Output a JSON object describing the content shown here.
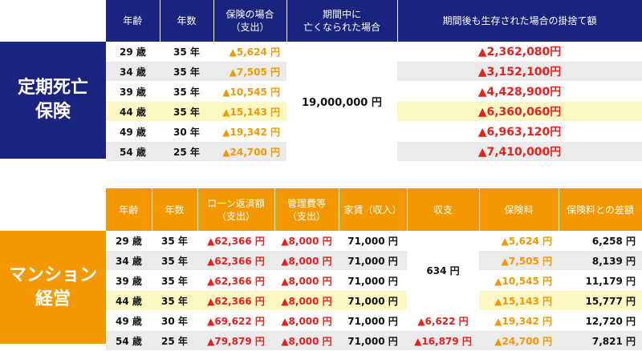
{
  "colors": {
    "navy": "#1a237e",
    "orange": "#f39800",
    "red": "#e8201d",
    "highlight": "#fdf7c4",
    "gray_row": "#ebebeb"
  },
  "term": {
    "label_line1": "定期死亡",
    "label_line2": "保険",
    "headers": {
      "age": "年齢",
      "years": "年数",
      "premium": "保険の場合\n（支出）",
      "death_payout": "期間中に\n亡くなられた場合",
      "survival": "期間後も生存された場合の掛捨て額"
    },
    "death_payout_value": "19,000,000 円",
    "rows": [
      {
        "age": "29 歳",
        "years": "35 年",
        "premium": "5,624 円",
        "survival": "2,362,080円"
      },
      {
        "age": "34 歳",
        "years": "35 年",
        "premium": "7,505 円",
        "survival": "3,152,100円"
      },
      {
        "age": "39 歳",
        "years": "35 年",
        "premium": "10,545 円",
        "survival": "4,428,900円"
      },
      {
        "age": "44 歳",
        "years": "35 年",
        "premium": "15,143 円",
        "survival": "6,360,060円"
      },
      {
        "age": "49 歳",
        "years": "30 年",
        "premium": "19,342 円",
        "survival": "6,963,120円"
      },
      {
        "age": "54 歳",
        "years": "25 年",
        "premium": "24,700 円",
        "survival": "7,410,000円"
      }
    ]
  },
  "mansion": {
    "label_line1": "マンション",
    "label_line2": "経営",
    "headers": {
      "age": "年齢",
      "years": "年数",
      "loan": "ローン返済額\n（支出）",
      "mgmt": "管理費等\n（支出）",
      "rent": "家賃（収入）",
      "balance": "収支",
      "premium": "保険料",
      "diff": "保険料との差額"
    },
    "shared_balance": "634 円",
    "rows": [
      {
        "age": "29 歳",
        "years": "35 年",
        "loan": "62,366 円",
        "mgmt": "8,000 円",
        "rent": "71,000 円",
        "balance": "",
        "premium": "5,624 円",
        "diff": "6,258 円"
      },
      {
        "age": "34 歳",
        "years": "35 年",
        "loan": "62,366 円",
        "mgmt": "8,000 円",
        "rent": "71,000 円",
        "balance": "",
        "premium": "7,505 円",
        "diff": "8,139 円"
      },
      {
        "age": "39 歳",
        "years": "35 年",
        "loan": "62,366 円",
        "mgmt": "8,000 円",
        "rent": "71,000 円",
        "balance": "",
        "premium": "10,545 円",
        "diff": "11,179 円"
      },
      {
        "age": "44 歳",
        "years": "35 年",
        "loan": "62,366 円",
        "mgmt": "8,000 円",
        "rent": "71,000 円",
        "balance": "",
        "premium": "15,143 円",
        "diff": "15,777 円"
      },
      {
        "age": "49 歳",
        "years": "30 年",
        "loan": "69,622 円",
        "mgmt": "8,000 円",
        "rent": "71,000 円",
        "balance": "6,622 円",
        "premium": "19,342 円",
        "diff": "12,720 円"
      },
      {
        "age": "54 歳",
        "years": "25 年",
        "loan": "79,879 円",
        "mgmt": "8,000 円",
        "rent": "71,000 円",
        "balance": "16,879 円",
        "premium": "24,700 円",
        "diff": "7,821 円"
      }
    ]
  }
}
